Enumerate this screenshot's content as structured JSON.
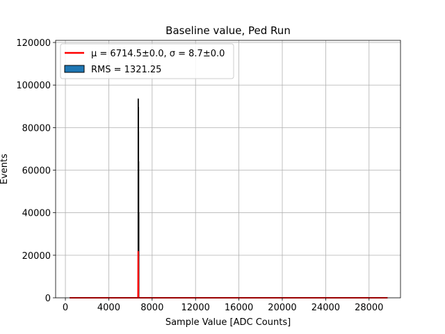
{
  "chart_data": {
    "type": "histogram",
    "title": "Baseline value, Ped Run",
    "xlabel": "Sample Value [ADC Counts]",
    "ylabel": "Events",
    "xlim": [
      -900,
      30900
    ],
    "ylim": [
      0,
      121000
    ],
    "x_ticks": [
      0,
      4000,
      8000,
      12000,
      16000,
      20000,
      24000,
      28000
    ],
    "x_tick_labels": [
      "0",
      "4000",
      "8000",
      "12000",
      "16000",
      "20000",
      "24000",
      "28000"
    ],
    "y_ticks": [
      0,
      20000,
      40000,
      60000,
      80000,
      100000,
      120000
    ],
    "y_tick_labels": [
      "0",
      "20000",
      "40000",
      "60000",
      "80000",
      "100000",
      "120000"
    ],
    "grid": true,
    "legend_position": "top-left",
    "legend": {
      "fit_label": "μ = 6714.5±0.0, σ = 8.7±0.0",
      "hist_label": "RMS = 1321.25"
    },
    "colors": {
      "histogram_fill": "#1f77b4",
      "histogram_edge": "#000000",
      "fit_line": "#ff0000",
      "grid": "#b0b0b0"
    },
    "histogram": {
      "x_range": [
        400,
        29700
      ],
      "baseline": 0,
      "peak_bins": [
        {
          "x0": 6690,
          "x1": 6700,
          "y": 93500
        },
        {
          "x0": 6700,
          "x1": 6710,
          "y": 89500
        },
        {
          "x0": 6710,
          "x1": 6720,
          "y": 78000
        },
        {
          "x0": 6720,
          "x1": 6730,
          "y": 64000
        },
        {
          "x0": 6730,
          "x1": 6740,
          "y": 40000
        }
      ]
    },
    "fit": {
      "type": "gaussian",
      "mu": 6714.5,
      "sigma": 8.7,
      "amplitude": 22000,
      "x_range": [
        400,
        29700
      ]
    }
  }
}
